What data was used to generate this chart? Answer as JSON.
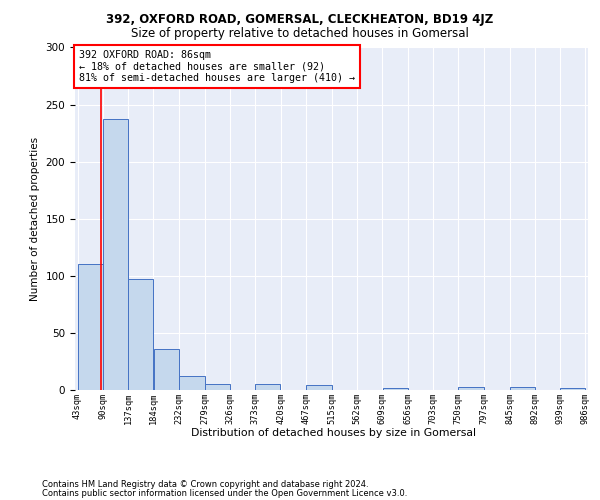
{
  "title": "392, OXFORD ROAD, GOMERSAL, CLECKHEATON, BD19 4JZ",
  "subtitle": "Size of property relative to detached houses in Gomersal",
  "xlabel": "Distribution of detached houses by size in Gomersal",
  "ylabel": "Number of detached properties",
  "bins": [
    43,
    90,
    137,
    184,
    232,
    279,
    326,
    373,
    420,
    467,
    515,
    562,
    609,
    656,
    703,
    750,
    797,
    845,
    892,
    939,
    986
  ],
  "bar_heights": [
    110,
    237,
    97,
    36,
    12,
    5,
    0,
    5,
    0,
    4,
    0,
    0,
    2,
    0,
    0,
    3,
    0,
    3,
    0,
    2
  ],
  "bar_color": "#c5d8ed",
  "bar_edge_color": "#4472c4",
  "red_line_x": 86,
  "annotation_text": "392 OXFORD ROAD: 86sqm\n← 18% of detached houses are smaller (92)\n81% of semi-detached houses are larger (410) →",
  "ylim": [
    0,
    300
  ],
  "yticks": [
    0,
    50,
    100,
    150,
    200,
    250,
    300
  ],
  "ax_facecolor": "#e8edf8",
  "footer_line1": "Contains HM Land Registry data © Crown copyright and database right 2024.",
  "footer_line2": "Contains public sector information licensed under the Open Government Licence v3.0."
}
